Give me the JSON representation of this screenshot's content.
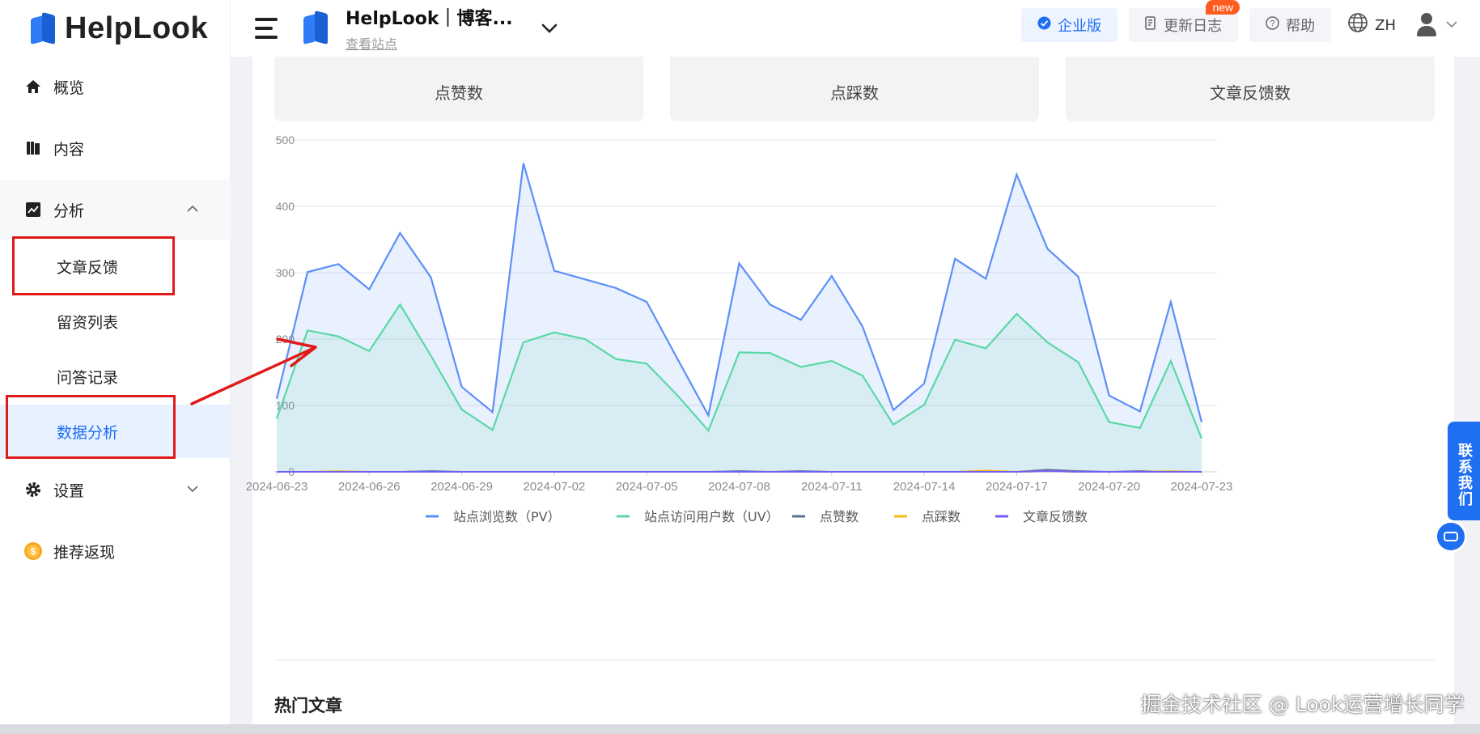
{
  "header": {
    "logo_text": "HelpLook",
    "site_name": "HelpLook｜博客...",
    "site_link": "查看站点",
    "enterprise_label": "企业版",
    "changelog_label": "更新日志",
    "new_badge": "new",
    "help_label": "帮助",
    "lang_label": "ZH"
  },
  "sidebar": {
    "overview": "概览",
    "content": "内容",
    "analysis": "分析",
    "sub_items": [
      "文章反馈",
      "留资列表",
      "问答记录",
      "数据分析"
    ],
    "settings": "设置",
    "referral": "推荐返现"
  },
  "stat_cards": [
    "点赞数",
    "点踩数",
    "文章反馈数"
  ],
  "chart_data": {
    "type": "area",
    "x": [
      "2024-06-23",
      "2024-06-24",
      "2024-06-25",
      "2024-06-26",
      "2024-06-27",
      "2024-06-28",
      "2024-06-29",
      "2024-06-30",
      "2024-07-01",
      "2024-07-02",
      "2024-07-03",
      "2024-07-04",
      "2024-07-05",
      "2024-07-06",
      "2024-07-07",
      "2024-07-08",
      "2024-07-09",
      "2024-07-10",
      "2024-07-11",
      "2024-07-12",
      "2024-07-13",
      "2024-07-14",
      "2024-07-15",
      "2024-07-16",
      "2024-07-17",
      "2024-07-18",
      "2024-07-19",
      "2024-07-20",
      "2024-07-21",
      "2024-07-22",
      "2024-07-23"
    ],
    "x_ticks": [
      "2024-06-23",
      "2024-06-26",
      "2024-06-29",
      "2024-07-02",
      "2024-07-05",
      "2024-07-08",
      "2024-07-11",
      "2024-07-14",
      "2024-07-17",
      "2024-07-20",
      "2024-07-23"
    ],
    "y_ticks": [
      0,
      100,
      200,
      300,
      400,
      500
    ],
    "ylim": [
      0,
      500
    ],
    "series": [
      {
        "name": "站点浏览数（PV）",
        "color": "#5b8ff9",
        "values": [
          110,
          301,
          313,
          275,
          360,
          293,
          128,
          90,
          465,
          303,
          290,
          277,
          256,
          170,
          85,
          314,
          252,
          229,
          295,
          219,
          93,
          133,
          321,
          291,
          448,
          336,
          294,
          115,
          91,
          256,
          75
        ]
      },
      {
        "name": "站点访问用户数（UV）",
        "color": "#5ad8a6",
        "values": [
          80,
          213,
          204,
          182,
          252,
          175,
          94,
          63,
          195,
          210,
          200,
          170,
          163,
          115,
          62,
          180,
          179,
          158,
          167,
          145,
          71,
          101,
          199,
          186,
          238,
          195,
          165,
          75,
          66,
          167,
          50
        ]
      },
      {
        "name": "点赞数",
        "color": "#5d7092",
        "values": [
          0,
          0,
          0,
          0,
          0,
          1,
          0,
          0,
          0,
          0,
          0,
          0,
          0,
          0,
          0,
          1,
          0,
          1,
          0,
          0,
          0,
          0,
          0,
          0,
          0,
          3,
          1,
          0,
          1,
          0,
          0
        ]
      },
      {
        "name": "点踩数",
        "color": "#f6bd16",
        "values": [
          0,
          0,
          1,
          0,
          0,
          0,
          0,
          0,
          0,
          0,
          0,
          0,
          0,
          0,
          0,
          0,
          0,
          0,
          0,
          0,
          0,
          0,
          0,
          2,
          0,
          1,
          0,
          0,
          0,
          1,
          0
        ]
      },
      {
        "name": "文章反馈数",
        "color": "#6f5ef9",
        "values": [
          0,
          0,
          0,
          0,
          0,
          0,
          0,
          0,
          0,
          0,
          0,
          0,
          0,
          0,
          0,
          0,
          0,
          0,
          0,
          0,
          0,
          0,
          0,
          0,
          0,
          1,
          0,
          0,
          0,
          0,
          0
        ]
      }
    ]
  },
  "hot_articles_title": "热门文章",
  "contact_label": "联系我们",
  "watermark": "掘金技术社区 @ Look运营增长同学"
}
